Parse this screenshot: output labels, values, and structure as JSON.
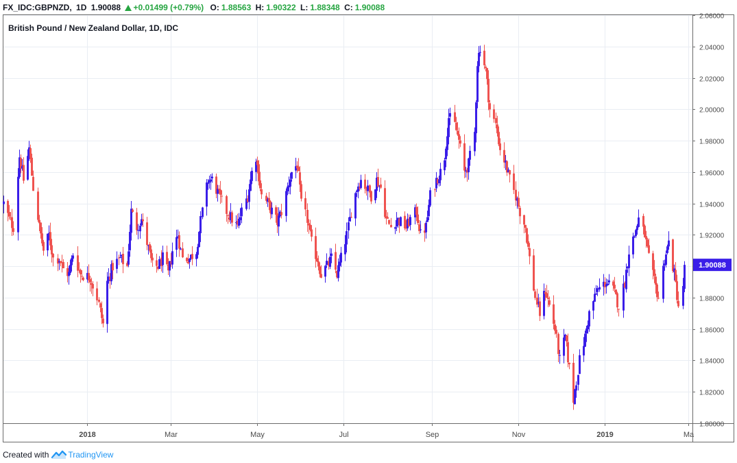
{
  "header": {
    "symbol": "FX_IDC:GBPNZD,",
    "interval": "1D",
    "last": "1.90088",
    "change": "+0.01499 (+0.79%)",
    "o_label": "O:",
    "o": "1.88563",
    "h_label": "H:",
    "h": "1.90322",
    "l_label": "L:",
    "l": "1.88348",
    "c_label": "C:",
    "c": "1.90088"
  },
  "footer": {
    "created_with": "Created with",
    "brand": "TradingView"
  },
  "colors": {
    "up": "#3a1ee8",
    "down": "#ef5350",
    "grid": "#e9edf3",
    "axis_text": "#4a4a4a",
    "price_label_bg": "#3a1ee8"
  },
  "chart_data": {
    "type": "candlestick",
    "title": "British Pound / New Zealand Dollar, 1D, IDC",
    "ylim": [
      1.8,
      2.06
    ],
    "yticks": [
      "1.80000",
      "1.82000",
      "1.84000",
      "1.86000",
      "1.88000",
      "1.90000",
      "1.92000",
      "1.94000",
      "1.96000",
      "1.98000",
      "2.00000",
      "2.02000",
      "2.04000",
      "2.06000"
    ],
    "xlim": [
      "2017-11-03",
      "2019-03-04"
    ],
    "xticks": [
      {
        "date": "2018-01-01",
        "label": "2018",
        "bold": true
      },
      {
        "date": "2018-03-01",
        "label": "Mar",
        "bold": false
      },
      {
        "date": "2018-05-01",
        "label": "May",
        "bold": false
      },
      {
        "date": "2018-07-01",
        "label": "Jul",
        "bold": false
      },
      {
        "date": "2018-09-01",
        "label": "Sep",
        "bold": false
      },
      {
        "date": "2018-11-01",
        "label": "Nov",
        "bold": false
      },
      {
        "date": "2019-01-01",
        "label": "2019",
        "bold": true
      },
      {
        "date": "2019-03-01",
        "label": "Ma",
        "bold": false
      }
    ],
    "last_price": "1.90088",
    "close_path": [
      [
        "2017-11-03",
        1.94
      ],
      [
        "2017-11-07",
        1.93
      ],
      [
        "2017-11-10",
        1.925
      ],
      [
        "2017-11-14",
        1.97
      ],
      [
        "2017-11-17",
        1.955
      ],
      [
        "2017-11-21",
        1.975
      ],
      [
        "2017-11-24",
        1.95
      ],
      [
        "2017-11-28",
        1.925
      ],
      [
        "2017-12-01",
        1.91
      ],
      [
        "2017-12-05",
        1.92
      ],
      [
        "2017-12-08",
        1.905
      ],
      [
        "2017-12-12",
        1.905
      ],
      [
        "2017-12-15",
        1.898
      ],
      [
        "2017-12-19",
        1.895
      ],
      [
        "2017-12-22",
        1.908
      ],
      [
        "2017-12-27",
        1.895
      ],
      [
        "2018-01-03",
        1.893
      ],
      [
        "2018-01-08",
        1.88
      ],
      [
        "2018-01-12",
        1.863
      ],
      [
        "2018-01-15",
        1.89
      ],
      [
        "2018-01-19",
        1.9
      ],
      [
        "2018-01-24",
        1.905
      ],
      [
        "2018-01-29",
        1.9
      ],
      [
        "2018-02-01",
        1.935
      ],
      [
        "2018-02-05",
        1.925
      ],
      [
        "2018-02-08",
        1.93
      ],
      [
        "2018-02-12",
        1.915
      ],
      [
        "2018-02-16",
        1.9
      ],
      [
        "2018-02-20",
        1.9
      ],
      [
        "2018-02-23",
        1.905
      ],
      [
        "2018-02-27",
        1.895
      ],
      [
        "2018-03-02",
        1.91
      ],
      [
        "2018-03-06",
        1.92
      ],
      [
        "2018-03-09",
        1.905
      ],
      [
        "2018-03-14",
        1.905
      ],
      [
        "2018-03-19",
        1.91
      ],
      [
        "2018-03-23",
        1.935
      ],
      [
        "2018-03-27",
        1.955
      ],
      [
        "2018-03-30",
        1.955
      ],
      [
        "2018-04-04",
        1.945
      ],
      [
        "2018-04-09",
        1.935
      ],
      [
        "2018-04-13",
        1.93
      ],
      [
        "2018-04-17",
        1.925
      ],
      [
        "2018-04-20",
        1.935
      ],
      [
        "2018-04-24",
        1.945
      ],
      [
        "2018-04-27",
        1.96
      ],
      [
        "2018-04-30",
        1.97
      ],
      [
        "2018-05-04",
        1.945
      ],
      [
        "2018-05-08",
        1.94
      ],
      [
        "2018-05-11",
        1.935
      ],
      [
        "2018-05-15",
        1.928
      ],
      [
        "2018-05-18",
        1.935
      ],
      [
        "2018-05-22",
        1.95
      ],
      [
        "2018-05-25",
        1.96
      ],
      [
        "2018-05-29",
        1.965
      ],
      [
        "2018-06-01",
        1.94
      ],
      [
        "2018-06-05",
        1.93
      ],
      [
        "2018-06-08",
        1.915
      ],
      [
        "2018-06-12",
        1.905
      ],
      [
        "2018-06-15",
        1.895
      ],
      [
        "2018-06-19",
        1.9
      ],
      [
        "2018-06-22",
        1.905
      ],
      [
        "2018-06-26",
        1.895
      ],
      [
        "2018-06-29",
        1.905
      ],
      [
        "2018-07-03",
        1.92
      ],
      [
        "2018-07-06",
        1.935
      ],
      [
        "2018-07-10",
        1.95
      ],
      [
        "2018-07-13",
        1.955
      ],
      [
        "2018-07-17",
        1.95
      ],
      [
        "2018-07-20",
        1.945
      ],
      [
        "2018-07-24",
        1.955
      ],
      [
        "2018-07-27",
        1.95
      ],
      [
        "2018-07-31",
        1.93
      ],
      [
        "2018-08-03",
        1.925
      ],
      [
        "2018-08-07",
        1.93
      ],
      [
        "2018-08-10",
        1.928
      ],
      [
        "2018-08-14",
        1.925
      ],
      [
        "2018-08-17",
        1.93
      ],
      [
        "2018-08-21",
        1.935
      ],
      [
        "2018-08-24",
        1.92
      ],
      [
        "2018-08-28",
        1.925
      ],
      [
        "2018-08-31",
        1.945
      ],
      [
        "2018-09-04",
        1.955
      ],
      [
        "2018-09-07",
        1.96
      ],
      [
        "2018-09-10",
        1.97
      ],
      [
        "2018-09-13",
        1.995
      ],
      [
        "2018-09-17",
        1.99
      ],
      [
        "2018-09-20",
        1.98
      ],
      [
        "2018-09-24",
        1.96
      ],
      [
        "2018-09-27",
        1.965
      ],
      [
        "2018-10-01",
        1.985
      ],
      [
        "2018-10-03",
        2.03
      ],
      [
        "2018-10-05",
        2.04
      ],
      [
        "2018-10-09",
        2.025
      ],
      [
        "2018-10-12",
        2.0
      ],
      [
        "2018-10-16",
        1.99
      ],
      [
        "2018-10-19",
        1.975
      ],
      [
        "2018-10-23",
        1.965
      ],
      [
        "2018-10-26",
        1.955
      ],
      [
        "2018-10-30",
        1.945
      ],
      [
        "2018-11-02",
        1.935
      ],
      [
        "2018-11-06",
        1.925
      ],
      [
        "2018-11-09",
        1.905
      ],
      [
        "2018-11-13",
        1.88
      ],
      [
        "2018-11-16",
        1.87
      ],
      [
        "2018-11-20",
        1.885
      ],
      [
        "2018-11-23",
        1.875
      ],
      [
        "2018-11-27",
        1.86
      ],
      [
        "2018-11-30",
        1.84
      ],
      [
        "2018-12-04",
        1.855
      ],
      [
        "2018-12-07",
        1.835
      ],
      [
        "2018-12-10",
        1.815
      ],
      [
        "2018-12-14",
        1.84
      ],
      [
        "2018-12-18",
        1.855
      ],
      [
        "2018-12-21",
        1.87
      ],
      [
        "2018-12-27",
        1.885
      ],
      [
        "2019-01-02",
        1.89
      ],
      [
        "2019-01-07",
        1.885
      ],
      [
        "2019-01-11",
        1.875
      ],
      [
        "2019-01-15",
        1.89
      ],
      [
        "2019-01-18",
        1.91
      ],
      [
        "2019-01-22",
        1.92
      ],
      [
        "2019-01-25",
        1.93
      ],
      [
        "2019-01-29",
        1.92
      ],
      [
        "2019-02-01",
        1.905
      ],
      [
        "2019-02-05",
        1.89
      ],
      [
        "2019-02-08",
        1.88
      ],
      [
        "2019-02-12",
        1.905
      ],
      [
        "2019-02-15",
        1.915
      ],
      [
        "2019-02-19",
        1.895
      ],
      [
        "2019-02-22",
        1.875
      ],
      [
        "2019-02-25",
        1.885
      ],
      [
        "2019-02-26",
        1.90088
      ]
    ],
    "ohlc_last": {
      "date": "2019-02-26",
      "open": 1.88563,
      "high": 1.90322,
      "low": 1.88348,
      "close": 1.90088
    }
  }
}
